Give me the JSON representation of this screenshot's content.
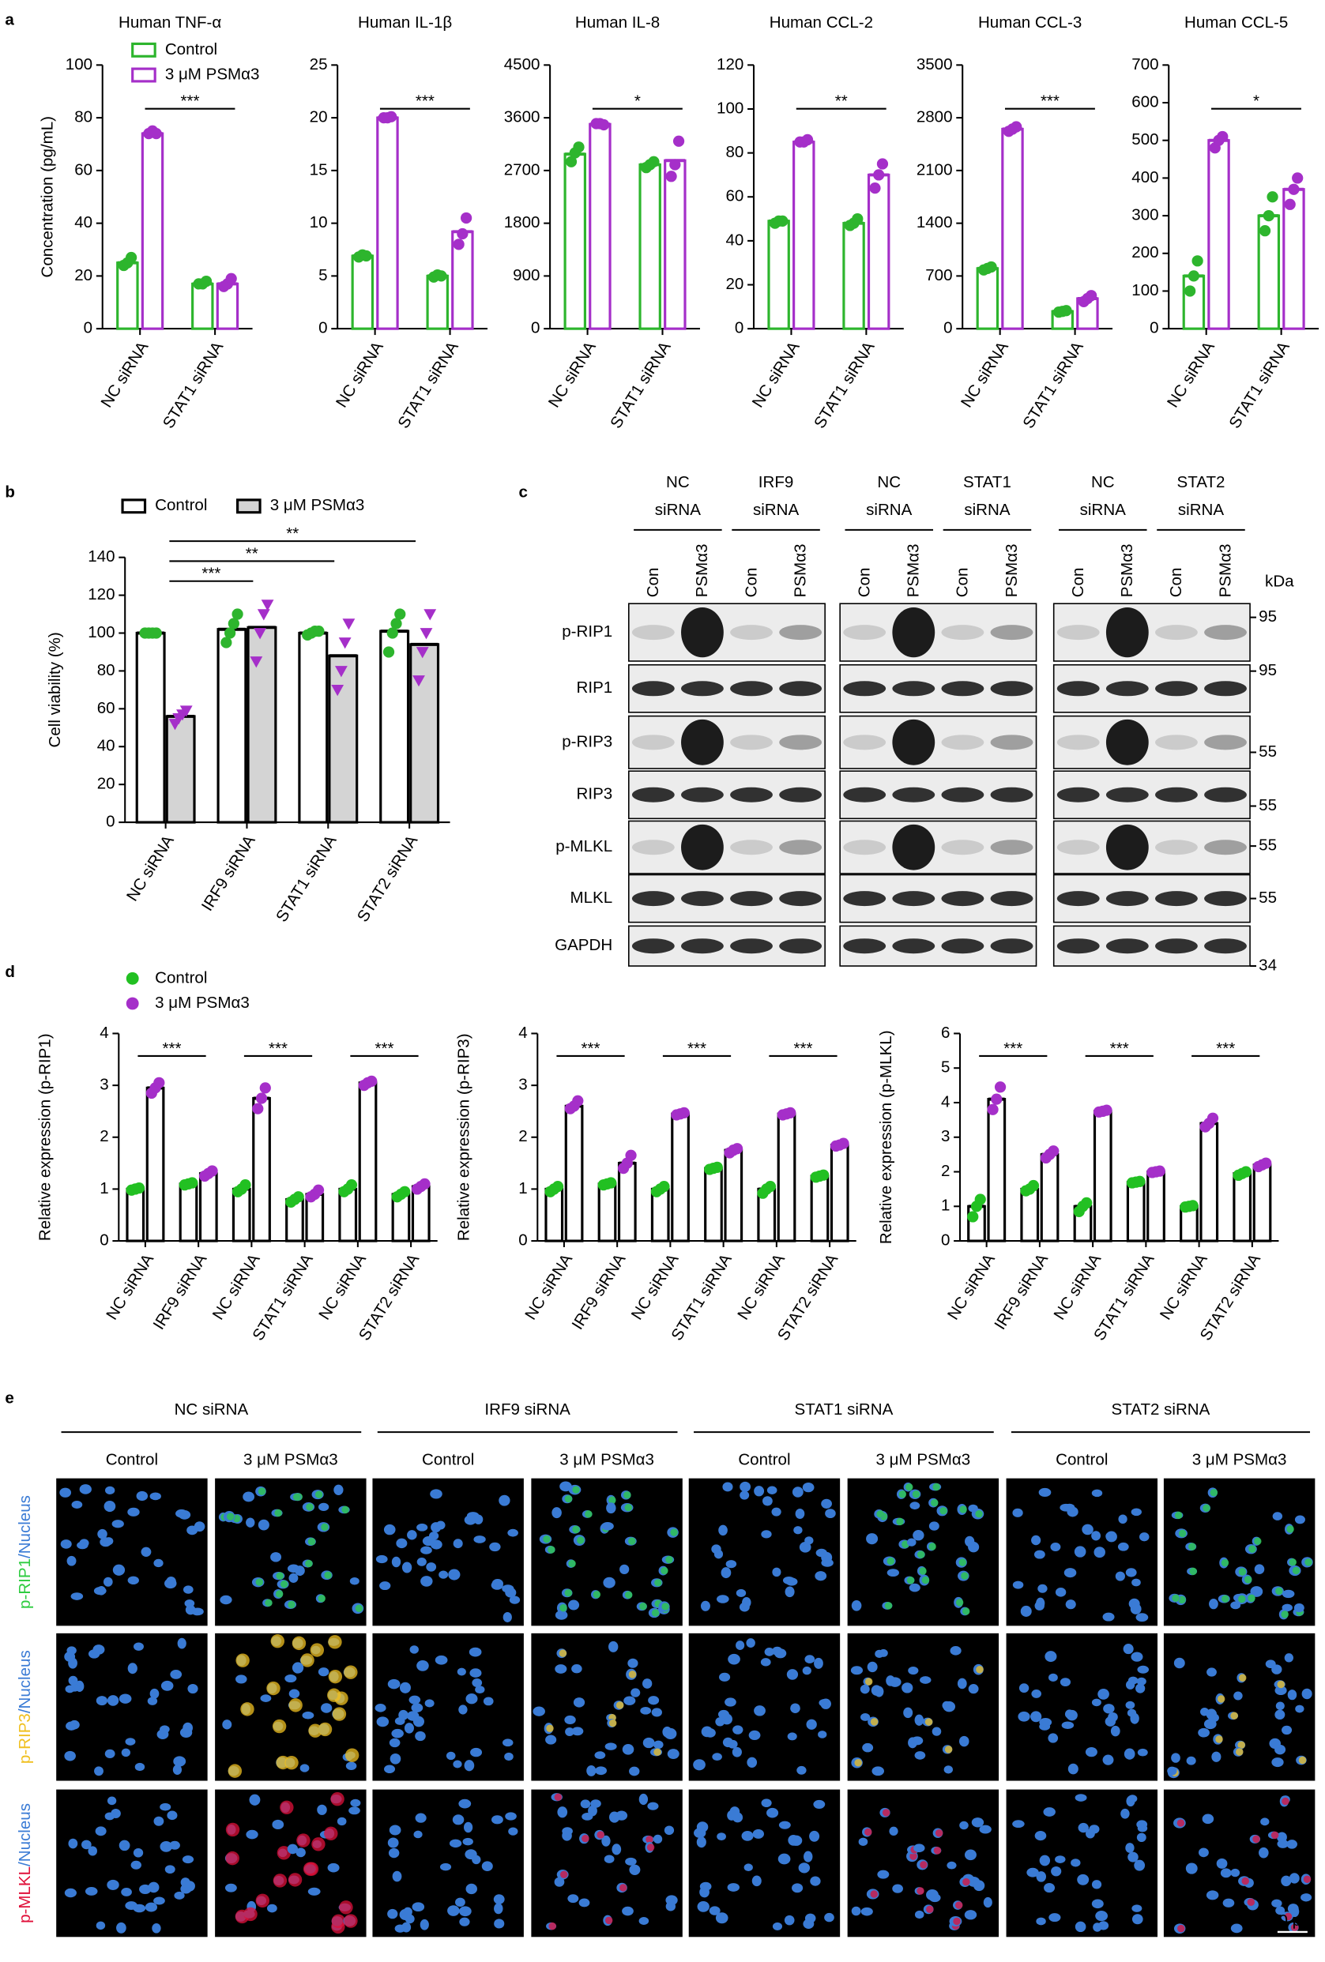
{
  "panel_labels": [
    "a",
    "b",
    "c",
    "d",
    "e"
  ],
  "chart_data": [
    {
      "type": "bar",
      "title": "Human TNF-α",
      "ylabel": "Concentration (pg/mL)",
      "categories": [
        "NC siRNA",
        "STAT1 siRNA"
      ],
      "series": [
        {
          "name": "Control",
          "color": "#2db52d",
          "fill": "#ffffff",
          "point_color": "#2db52d",
          "point_shape": "circle",
          "values": [
            25,
            17
          ],
          "points": [
            [
              24,
              25,
              27
            ],
            [
              17,
              17,
              18
            ]
          ]
        },
        {
          "name": "3 μM PSMα3",
          "color": "#a52fc9",
          "fill": "#ffffff",
          "point_color": "#a52fc9",
          "point_shape": "circle",
          "values": [
            74,
            17
          ],
          "points": [
            [
              74,
              75,
              74
            ],
            [
              16,
              17,
              19
            ]
          ]
        }
      ],
      "ylim": [
        0,
        100
      ],
      "yticks": [
        0,
        20,
        40,
        60,
        80,
        100
      ],
      "significance": [
        "***"
      ],
      "legend": "top-left",
      "legend_marker": "box"
    },
    {
      "type": "bar",
      "title": "Human IL-1β",
      "categories": [
        "NC siRNA",
        "STAT1 siRNA"
      ],
      "series": [
        {
          "name": "Control",
          "color": "#2db52d",
          "fill": "#ffffff",
          "point_color": "#2db52d",
          "point_shape": "circle",
          "values": [
            6.9,
            5
          ],
          "points": [
            [
              6.8,
              7,
              6.9
            ],
            [
              4.9,
              5.1,
              5
            ]
          ]
        },
        {
          "name": "3 μM PSMα3",
          "color": "#a52fc9",
          "fill": "#ffffff",
          "point_color": "#a52fc9",
          "point_shape": "circle",
          "values": [
            20,
            9.2
          ],
          "points": [
            [
              20,
              20,
              20.1
            ],
            [
              8,
              9,
              10.5
            ]
          ]
        }
      ],
      "ylim": [
        0,
        25
      ],
      "yticks": [
        0,
        5,
        10,
        15,
        20,
        25
      ],
      "significance": [
        "***"
      ]
    },
    {
      "type": "bar",
      "title": "Human IL-8",
      "categories": [
        "NC siRNA",
        "STAT1 siRNA"
      ],
      "series": [
        {
          "name": "Control",
          "color": "#2db52d",
          "fill": "#ffffff",
          "point_color": "#2db52d",
          "point_shape": "circle",
          "values": [
            2980,
            2800
          ],
          "points": [
            [
              2850,
              3000,
              3100
            ],
            [
              2750,
              2800,
              2850
            ]
          ]
        },
        {
          "name": "3 μM PSMα3",
          "color": "#a52fc9",
          "fill": "#ffffff",
          "point_color": "#a52fc9",
          "point_shape": "circle",
          "values": [
            3490,
            2870
          ],
          "points": [
            [
              3500,
              3500,
              3480
            ],
            [
              2600,
              2800,
              3200
            ]
          ]
        }
      ],
      "ylim": [
        0,
        4500
      ],
      "yticks": [
        0,
        900,
        1800,
        2700,
        3600,
        4500
      ],
      "significance": [
        "*"
      ]
    },
    {
      "type": "bar",
      "title": "Human CCL-2",
      "categories": [
        "NC siRNA",
        "STAT1 siRNA"
      ],
      "series": [
        {
          "name": "Control",
          "color": "#2db52d",
          "fill": "#ffffff",
          "point_color": "#2db52d",
          "point_shape": "circle",
          "values": [
            49,
            48
          ],
          "points": [
            [
              48,
              49,
              49
            ],
            [
              47,
              48,
              50
            ]
          ]
        },
        {
          "name": "3 μM PSMα3",
          "color": "#a52fc9",
          "fill": "#ffffff",
          "point_color": "#a52fc9",
          "point_shape": "circle",
          "values": [
            85,
            70
          ],
          "points": [
            [
              85,
              85,
              86
            ],
            [
              64,
              70,
              75
            ]
          ]
        }
      ],
      "ylim": [
        0,
        120
      ],
      "yticks": [
        0,
        20,
        40,
        60,
        80,
        100,
        120
      ],
      "significance": [
        "**"
      ]
    },
    {
      "type": "bar",
      "title": "Human CCL-3",
      "categories": [
        "NC siRNA",
        "STAT1 siRNA"
      ],
      "series": [
        {
          "name": "Control",
          "color": "#2db52d",
          "fill": "#ffffff",
          "point_color": "#2db52d",
          "point_shape": "circle",
          "values": [
            800,
            230
          ],
          "points": [
            [
              780,
              800,
              820
            ],
            [
              220,
              230,
              240
            ]
          ]
        },
        {
          "name": "3 μM PSMα3",
          "color": "#a52fc9",
          "fill": "#ffffff",
          "point_color": "#a52fc9",
          "point_shape": "circle",
          "values": [
            2650,
            400
          ],
          "points": [
            [
              2620,
              2650,
              2680
            ],
            [
              360,
              400,
              440
            ]
          ]
        }
      ],
      "ylim": [
        0,
        3500
      ],
      "yticks": [
        0,
        700,
        1400,
        2100,
        2800,
        3500
      ],
      "significance": [
        "***"
      ]
    },
    {
      "type": "bar",
      "title": "Human CCL-5",
      "categories": [
        "NC siRNA",
        "STAT1 siRNA"
      ],
      "series": [
        {
          "name": "Control",
          "color": "#2db52d",
          "fill": "#ffffff",
          "point_color": "#2db52d",
          "point_shape": "circle",
          "values": [
            140,
            300
          ],
          "points": [
            [
              100,
              140,
              180
            ],
            [
              260,
              300,
              350
            ]
          ]
        },
        {
          "name": "3 μM PSMα3",
          "color": "#a52fc9",
          "fill": "#ffffff",
          "point_color": "#a52fc9",
          "point_shape": "circle",
          "values": [
            500,
            370
          ],
          "points": [
            [
              480,
              500,
              510
            ],
            [
              330,
              370,
              400
            ]
          ]
        }
      ],
      "ylim": [
        0,
        700
      ],
      "yticks": [
        0,
        100,
        200,
        300,
        400,
        500,
        600,
        700
      ],
      "significance": [
        "*"
      ]
    },
    {
      "type": "bar",
      "ylabel": "Cell viability (%)",
      "categories": [
        "NC siRNA",
        "IRF9 siRNA",
        "STAT1 siRNA",
        "STAT2 siRNA"
      ],
      "series": [
        {
          "name": "Control",
          "color": "#000000",
          "fill": "#ffffff",
          "point_color": "#2db52d",
          "point_shape": "circle",
          "values": [
            100,
            102,
            100,
            101
          ],
          "points": [
            [
              100,
              100,
              100,
              100
            ],
            [
              95,
              100,
              105,
              110
            ],
            [
              99,
              100,
              101,
              101
            ],
            [
              90,
              100,
              105,
              110
            ]
          ]
        },
        {
          "name": "3 μM PSMα3",
          "color": "#000000",
          "fill": "#d4d4d4",
          "point_color": "#a52fc9",
          "point_shape": "triangle",
          "values": [
            56,
            103,
            88,
            94
          ],
          "points": [
            [
              52,
              55,
              57,
              59
            ],
            [
              85,
              100,
              110,
              115
            ],
            [
              70,
              80,
              95,
              105
            ],
            [
              75,
              90,
              100,
              110
            ]
          ]
        }
      ],
      "ylim": [
        0,
        140
      ],
      "yticks": [
        0,
        20,
        40,
        60,
        80,
        100,
        120,
        140
      ],
      "significance": [
        "***",
        "**",
        "**"
      ],
      "legend": "top",
      "legend_marker": "box"
    },
    {
      "type": "bar",
      "ylabel": "Relative expression (p-RIP1)",
      "categories": [
        "NC siRNA",
        "IRF9 siRNA",
        "NC siRNA",
        "STAT1 siRNA",
        "NC siRNA",
        "STAT2 siRNA"
      ],
      "series": [
        {
          "name": "Control",
          "color": "#000000",
          "fill": "#ffffff",
          "point_color": "#22c022",
          "point_shape": "circle",
          "values": [
            1,
            1.1,
            1,
            0.8,
            1,
            0.9
          ],
          "points": [
            [
              0.98,
              1,
              1.02
            ],
            [
              1.08,
              1.1,
              1.12
            ],
            [
              0.95,
              1,
              1.08
            ],
            [
              0.75,
              0.8,
              0.85
            ],
            [
              0.95,
              1,
              1.08
            ],
            [
              0.85,
              0.9,
              0.95
            ]
          ]
        },
        {
          "name": "3 μM PSMα3",
          "color": "#000000",
          "fill": "#ffffff",
          "point_color": "#a52fc9",
          "point_shape": "circle",
          "values": [
            2.95,
            1.3,
            2.75,
            0.9,
            3.05,
            1.05
          ],
          "points": [
            [
              2.85,
              2.95,
              3.05
            ],
            [
              1.25,
              1.3,
              1.35
            ],
            [
              2.55,
              2.75,
              2.95
            ],
            [
              0.85,
              0.9,
              0.98
            ],
            [
              3,
              3.05,
              3.08
            ],
            [
              1,
              1.05,
              1.1
            ]
          ]
        }
      ],
      "ylim": [
        0,
        4
      ],
      "yticks": [
        0,
        1,
        2,
        3,
        4
      ],
      "significance": [
        "***",
        "***",
        "***"
      ],
      "legend": "top-left",
      "legend_marker": "dot"
    },
    {
      "type": "bar",
      "ylabel": "Relative expression (p-RIP3)",
      "categories": [
        "NC siRNA",
        "IRF9 siRNA",
        "NC siRNA",
        "STAT1 siRNA",
        "NC siRNA",
        "STAT2 siRNA"
      ],
      "series": [
        {
          "name": "Control",
          "color": "#000000",
          "fill": "#ffffff",
          "point_color": "#22c022",
          "point_shape": "circle",
          "values": [
            1,
            1.1,
            1,
            1.4,
            1,
            1.25
          ],
          "points": [
            [
              0.95,
              1,
              1.05
            ],
            [
              1.08,
              1.1,
              1.12
            ],
            [
              0.95,
              1,
              1.05
            ],
            [
              1.38,
              1.4,
              1.42
            ],
            [
              0.92,
              1,
              1.05
            ],
            [
              1.23,
              1.25,
              1.27
            ]
          ]
        },
        {
          "name": "3 μM PSMα3",
          "color": "#000000",
          "fill": "#ffffff",
          "point_color": "#a52fc9",
          "point_shape": "circle",
          "values": [
            2.6,
            1.5,
            2.45,
            1.75,
            2.45,
            1.85
          ],
          "points": [
            [
              2.55,
              2.6,
              2.7
            ],
            [
              1.4,
              1.5,
              1.65
            ],
            [
              2.43,
              2.45,
              2.47
            ],
            [
              1.7,
              1.75,
              1.78
            ],
            [
              2.43,
              2.45,
              2.47
            ],
            [
              1.83,
              1.85,
              1.88
            ]
          ]
        }
      ],
      "ylim": [
        0,
        4
      ],
      "yticks": [
        0,
        1,
        2,
        3,
        4
      ],
      "significance": [
        "***",
        "***",
        "***"
      ]
    },
    {
      "type": "bar",
      "ylabel": "Relative expression (p-MLKL)",
      "categories": [
        "NC siRNA",
        "IRF9 siRNA",
        "NC siRNA",
        "STAT1 siRNA",
        "NC siRNA",
        "STAT2 siRNA"
      ],
      "series": [
        {
          "name": "Control",
          "color": "#000000",
          "fill": "#ffffff",
          "point_color": "#22c022",
          "point_shape": "circle",
          "values": [
            1,
            1.5,
            1,
            1.7,
            1,
            1.95
          ],
          "points": [
            [
              0.7,
              1,
              1.2
            ],
            [
              1.45,
              1.5,
              1.6
            ],
            [
              0.85,
              1,
              1.1
            ],
            [
              1.68,
              1.7,
              1.72
            ],
            [
              0.98,
              1,
              1.02
            ],
            [
              1.9,
              1.95,
              2
            ]
          ]
        },
        {
          "name": "3 μM PSMα3",
          "color": "#000000",
          "fill": "#ffffff",
          "point_color": "#a52fc9",
          "point_shape": "circle",
          "values": [
            4.1,
            2.5,
            3.75,
            2,
            3.4,
            2.2
          ],
          "points": [
            [
              3.8,
              4.1,
              4.45
            ],
            [
              2.4,
              2.5,
              2.6
            ],
            [
              3.73,
              3.75,
              3.78
            ],
            [
              1.98,
              2,
              2.02
            ],
            [
              3.3,
              3.4,
              3.55
            ],
            [
              2.15,
              2.2,
              2.25
            ]
          ]
        }
      ],
      "ylim": [
        0,
        6
      ],
      "yticks": [
        0,
        1,
        2,
        3,
        4,
        5,
        6
      ],
      "significance": [
        "***",
        "***",
        "***"
      ]
    }
  ],
  "blot": {
    "groups": [
      [
        "NC",
        "siRNA"
      ],
      [
        "IRF9",
        "siRNA"
      ],
      [
        "NC",
        "siRNA"
      ],
      [
        "STAT1",
        "siRNA"
      ],
      [
        "NC",
        "siRNA"
      ],
      [
        "STAT2",
        "siRNA"
      ]
    ],
    "lanes": [
      "Con",
      "PSMα3"
    ],
    "rows": [
      "p-RIP1",
      "RIP1",
      "p-RIP3",
      "RIP3",
      "p-MLKL",
      "MLKL",
      "GAPDH"
    ],
    "unit": "kDa",
    "markers": [
      95,
      95,
      55,
      55,
      55,
      55,
      34
    ]
  },
  "micrographs": {
    "groups": [
      "NC siRNA",
      "IRF9 siRNA",
      "STAT1 siRNA",
      "STAT2 siRNA"
    ],
    "conditions": [
      "Control",
      "3 μM PSMα3"
    ],
    "rows": [
      {
        "marker": "p-RIP1",
        "marker_color": "#2ecc40",
        "stain": "/Nucleus"
      },
      {
        "marker": "p-RIP3",
        "marker_color": "#f0c020",
        "stain": "/Nucleus"
      },
      {
        "marker": "p-MLKL",
        "marker_color": "#e0103a",
        "stain": "/Nucleus"
      }
    ],
    "stain_color": "#3a7bd5",
    "scale_bar": "50 μm"
  }
}
